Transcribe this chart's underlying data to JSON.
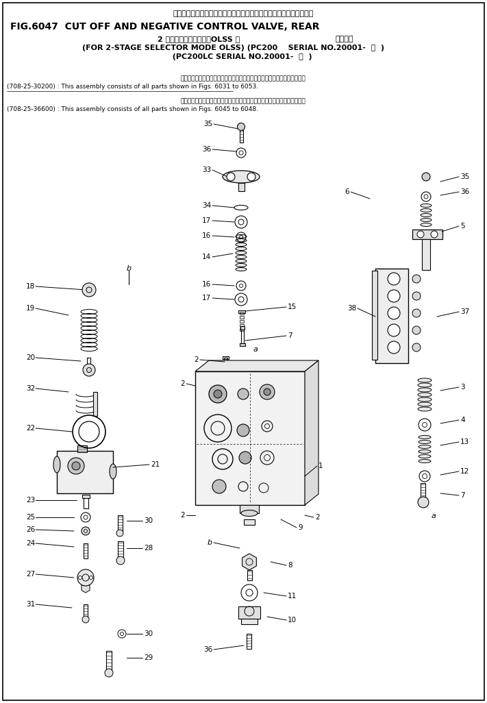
{
  "title_jp": "カット　オフ　および　ネガティブ　コントロール　バルブ，リヤー",
  "title_en": "FIG.6047  CUT OFF AND NEGATIVE CONTROL VALVE, REAR",
  "sub_jp": "2 段　モード　切　換　OLSS 用",
  "sub_en_right": "適用号機",
  "sub_en1": "(FOR 2-STAGE SELECTOR MODE OLSS) (PC200    SERIAL NO.20001-  ・  )",
  "sub_en2": "                                  (PC200LC SERIAL NO.20001-  ・  )",
  "note1_jp": "このアセンブリの構成部品は第６０３１図から第６０５３図まで含みます．",
  "note1_en": "(708-25-30200) : This assembly consists of all parts shown in Figs. 6031 to 6053.",
  "note2_jp": "このアセンブリの構成部品は第６０４５図から第６０４８図まで含みます．",
  "note2_en": "(708-25-36600) : This assembly consists of all parts shown in Figs. 6045 to 6048.",
  "bg_color": "#ffffff",
  "fg_color": "#000000",
  "fig_width": 7.11,
  "fig_height": 10.26,
  "dpi": 100
}
